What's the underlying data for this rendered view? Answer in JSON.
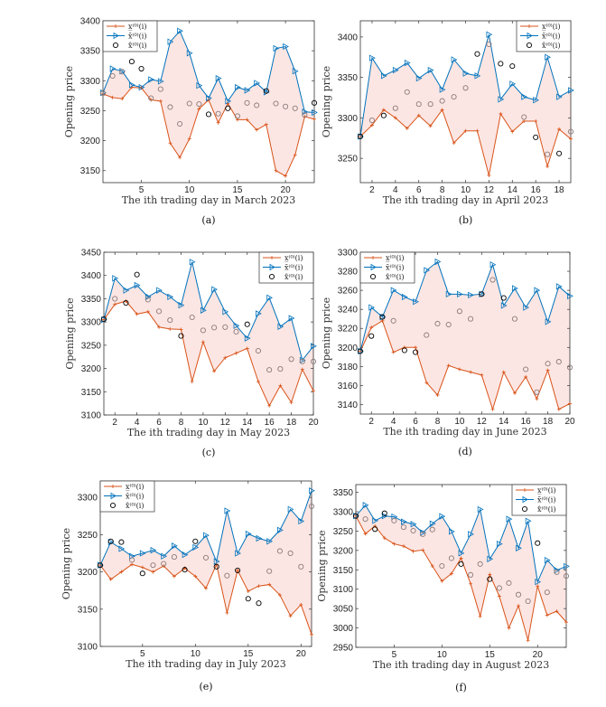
{
  "colors": {
    "lower": "#D95319",
    "upper": "#0072BD",
    "interval_fill": "#FCE6E3",
    "actual": "#000000",
    "actual_inside": "#8a7a7a"
  },
  "legend_labels": [
    "x̲⁽⁰⁾(i)",
    "x̄⁽⁰⁾(i)",
    "x̂⁽⁰⁾(i)"
  ],
  "chart_data": [
    {
      "panel_label": "(a)",
      "type": "line",
      "xlabel": "The ith trading day in March 2023",
      "ylabel": "Opening price",
      "xlim": [
        1,
        23
      ],
      "ylim": [
        3130,
        3400
      ],
      "xticks": [
        5,
        10,
        15,
        20
      ],
      "yticks": [
        3150,
        3200,
        3250,
        3300,
        3350,
        3400
      ],
      "legend": "top-left",
      "grid": false,
      "series": [
        {
          "name": "x̲⁽⁰⁾(i)",
          "values": [
            3278,
            3272,
            3270,
            3289,
            3288,
            3268,
            3266,
            3196,
            3172,
            3203,
            3253,
            3268,
            3230,
            3262,
            3235,
            3235,
            3218,
            3227,
            3150,
            3141,
            3176,
            3240,
            3236
          ]
        },
        {
          "name": "x̄⁽⁰⁾(i)",
          "values": [
            3280,
            3320,
            3316,
            3293,
            3289,
            3302,
            3299,
            3365,
            3383,
            3346,
            3292,
            3271,
            3304,
            3266,
            3289,
            3284,
            3296,
            3281,
            3354,
            3357,
            3316,
            3248,
            3247
          ]
        },
        {
          "name": "x̂⁽⁰⁾(i)",
          "values": [
            3279,
            3308,
            3315,
            3332,
            3320,
            3271,
            3286,
            3256,
            3228,
            3262,
            3261,
            3244,
            3245,
            3254,
            3241,
            3263,
            3259,
            3283,
            3262,
            3257,
            3254,
            3243,
            3263
          ]
        }
      ]
    },
    {
      "panel_label": "(b)",
      "type": "line",
      "xlabel": "The ith trading day in April 2023",
      "ylabel": "Opening price",
      "xlim": [
        1,
        19
      ],
      "ylim": [
        3220,
        3420
      ],
      "xticks": [
        2,
        4,
        6,
        8,
        10,
        12,
        14,
        16,
        18
      ],
      "yticks": [
        3250,
        3300,
        3350,
        3400
      ],
      "legend": "top-right",
      "grid": false,
      "series": [
        {
          "name": "x̲⁽⁰⁾(i)",
          "values": [
            3277,
            3291,
            3310,
            3300,
            3287,
            3303,
            3290,
            3310,
            3269,
            3284,
            3284,
            3229,
            3305,
            3283,
            3296,
            3296,
            3240,
            3286,
            3274
          ]
        },
        {
          "name": "x̄⁽⁰⁾(i)",
          "values": [
            3277,
            3374,
            3352,
            3359,
            3368,
            3349,
            3359,
            3335,
            3372,
            3355,
            3352,
            3403,
            3323,
            3342,
            3326,
            3322,
            3375,
            3326,
            3334
          ]
        },
        {
          "name": "x̂⁽⁰⁾(i)",
          "values": [
            3277,
            3297,
            3303,
            3312,
            3332,
            3317,
            3317,
            3321,
            3326,
            3337,
            3379,
            3391,
            3367,
            3364,
            3301,
            3276,
            3255,
            3256,
            3283
          ]
        }
      ]
    },
    {
      "panel_label": "(c)",
      "type": "line",
      "xlabel": "The ith trading day in May 2023",
      "ylabel": "Opening price",
      "xlim": [
        1,
        20
      ],
      "ylim": [
        3100,
        3450
      ],
      "xticks": [
        2,
        4,
        6,
        8,
        10,
        12,
        14,
        16,
        18,
        20
      ],
      "yticks": [
        3100,
        3150,
        3200,
        3250,
        3300,
        3350,
        3400,
        3450
      ],
      "legend": "top-right",
      "grid": false,
      "series": [
        {
          "name": "x̲⁽⁰⁾(i)",
          "values": [
            3305,
            3338,
            3345,
            3317,
            3322,
            3289,
            3285,
            3284,
            3172,
            3257,
            3194,
            3223,
            3233,
            3243,
            3172,
            3120,
            3163,
            3127,
            3198,
            3152
          ]
        },
        {
          "name": "x̄⁽⁰⁾(i)",
          "values": [
            3305,
            3394,
            3368,
            3379,
            3354,
            3368,
            3354,
            3336,
            3429,
            3325,
            3370,
            3322,
            3292,
            3265,
            3318,
            3352,
            3290,
            3308,
            3218,
            3248
          ]
        },
        {
          "name": "x̂⁽⁰⁾(i)",
          "values": [
            3306,
            3350,
            3341,
            3402,
            3348,
            3323,
            3304,
            3270,
            3310,
            3282,
            3288,
            3289,
            3279,
            3295,
            3238,
            3197,
            3199,
            3220,
            3215,
            3215
          ]
        }
      ]
    },
    {
      "panel_label": "(d)",
      "type": "line",
      "xlabel": "The ith trading day in June 2023",
      "ylabel": "Opening price",
      "xlim": [
        1,
        20
      ],
      "ylim": [
        3130,
        3300
      ],
      "xticks": [
        2,
        4,
        6,
        8,
        10,
        12,
        14,
        16,
        18,
        20
      ],
      "yticks": [
        3140,
        3160,
        3180,
        3200,
        3220,
        3240,
        3260,
        3280,
        3300
      ],
      "legend": "top-left",
      "grid": false,
      "series": [
        {
          "name": "x̲⁽⁰⁾(i)",
          "values": [
            3196,
            3221,
            3228,
            3195,
            3200,
            3200,
            3163,
            3150,
            3181,
            3177,
            3174,
            3171,
            3135,
            3174,
            3152,
            3169,
            3146,
            3176,
            3135,
            3141
          ]
        },
        {
          "name": "x̄⁽⁰⁾(i)",
          "values": [
            3196,
            3242,
            3232,
            3260,
            3253,
            3248,
            3281,
            3290,
            3256,
            3256,
            3255,
            3256,
            3287,
            3244,
            3262,
            3242,
            3260,
            3227,
            3264,
            3254
          ]
        },
        {
          "name": "x̂⁽⁰⁾(i)",
          "values": [
            3196,
            3212,
            3232,
            3228,
            3197,
            3195,
            3213,
            3225,
            3224,
            3238,
            3230,
            3256,
            3271,
            3252,
            3230,
            3177,
            3153,
            3183,
            3185,
            3179
          ]
        }
      ]
    },
    {
      "panel_label": "(e)",
      "type": "line",
      "xlabel": "The ith trading day in July 2023",
      "ylabel": "Opening price",
      "xlim": [
        1,
        21
      ],
      "ylim": [
        3100,
        3322
      ],
      "xticks": [
        5,
        10,
        15,
        20
      ],
      "yticks": [
        3100,
        3150,
        3200,
        3250,
        3300
      ],
      "legend": "top-left",
      "grid": false,
      "series": [
        {
          "name": "x̲⁽⁰⁾(i)",
          "values": [
            3209,
            3190,
            3200,
            3210,
            3206,
            3200,
            3208,
            3194,
            3205,
            3194,
            3178,
            3210,
            3145,
            3202,
            3174,
            3181,
            3183,
            3169,
            3141,
            3156,
            3116
          ]
        },
        {
          "name": "x̄⁽⁰⁾(i)",
          "values": [
            3209,
            3240,
            3231,
            3221,
            3225,
            3229,
            3221,
            3235,
            3223,
            3233,
            3249,
            3214,
            3282,
            3225,
            3251,
            3245,
            3241,
            3256,
            3284,
            3268,
            3309
          ]
        },
        {
          "name": "x̂⁽⁰⁾(i)",
          "values": [
            3209,
            3241,
            3240,
            3216,
            3198,
            3209,
            3211,
            3220,
            3203,
            3241,
            3219,
            3207,
            3195,
            3202,
            3164,
            3158,
            3201,
            3228,
            3225,
            3207,
            3288
          ]
        }
      ]
    },
    {
      "panel_label": "(f)",
      "type": "line",
      "xlabel": "The ith trading day in August 2023",
      "ylabel": "Opening price",
      "xlim": [
        1,
        23
      ],
      "ylim": [
        2950,
        3370
      ],
      "xticks": [
        5,
        10,
        15,
        20
      ],
      "yticks": [
        2950,
        3000,
        3050,
        3100,
        3150,
        3200,
        3250,
        3300,
        3350
      ],
      "legend": "top-right",
      "grid": false,
      "series": [
        {
          "name": "x̲⁽⁰⁾(i)",
          "values": [
            3289,
            3243,
            3263,
            3232,
            3217,
            3211,
            3198,
            3201,
            3160,
            3121,
            3140,
            3180,
            3114,
            3030,
            3138,
            3082,
            3000,
            3057,
            2968,
            3108,
            3033,
            3043,
            3015
          ]
        },
        {
          "name": "x̄⁽⁰⁾(i)",
          "values": [
            3289,
            3317,
            3277,
            3289,
            3287,
            3274,
            3268,
            3246,
            3269,
            3288,
            3249,
            3193,
            3242,
            3306,
            3178,
            3217,
            3281,
            3206,
            3276,
            3119,
            3175,
            3149,
            3159
          ]
        },
        {
          "name": "x̂⁽⁰⁾(i)",
          "values": [
            3289,
            3281,
            3255,
            3296,
            3277,
            3260,
            3251,
            3242,
            3254,
            3160,
            3180,
            3165,
            3137,
            3165,
            3126,
            3103,
            3116,
            3086,
            3069,
            3219,
            3092,
            3144,
            3134
          ]
        }
      ]
    }
  ]
}
